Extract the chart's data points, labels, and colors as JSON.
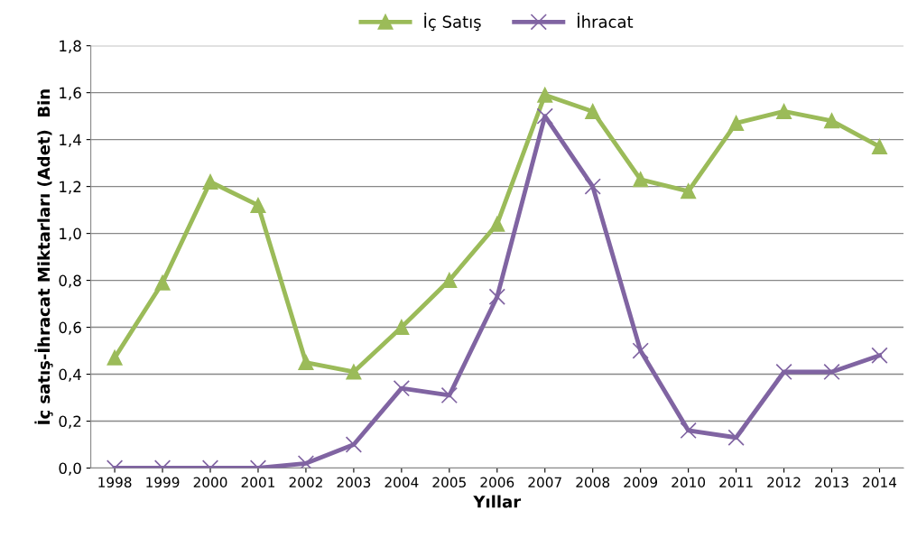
{
  "chart_data": {
    "type": "line",
    "xlabel": "Yıllar",
    "ylabel": "İç satış-İhracat Miktarları (Adet)  Bin",
    "categories": [
      "1998",
      "1999",
      "2000",
      "2001",
      "2002",
      "2003",
      "2004",
      "2005",
      "2006",
      "2007",
      "2008",
      "2009",
      "2010",
      "2011",
      "2012",
      "2013",
      "2014"
    ],
    "series": [
      {
        "name": "İç Satış",
        "color": "#9bbb59",
        "marker": "triangle",
        "values": [
          0.47,
          0.79,
          1.22,
          1.12,
          0.45,
          0.41,
          0.6,
          0.8,
          1.04,
          1.59,
          1.52,
          1.23,
          1.18,
          1.47,
          1.52,
          1.48,
          1.37
        ]
      },
      {
        "name": "İhracat",
        "color": "#8064a2",
        "marker": "cross",
        "values": [
          0.0,
          0.0,
          0.0,
          0.0,
          0.02,
          0.1,
          0.34,
          0.31,
          0.73,
          1.5,
          1.2,
          0.5,
          0.16,
          0.13,
          0.41,
          0.41,
          0.48
        ]
      }
    ],
    "ylim": [
      0,
      1.8
    ],
    "yticks": [
      {
        "value": 0,
        "label": "0,0"
      },
      {
        "value": 0.2,
        "label": "0,2"
      },
      {
        "value": 0.4,
        "label": "0,4"
      },
      {
        "value": 0.6,
        "label": "0,6"
      },
      {
        "value": 0.8,
        "label": "0,8"
      },
      {
        "value": 1.0,
        "label": "1,0"
      },
      {
        "value": 1.2,
        "label": "1,2"
      },
      {
        "value": 1.4,
        "label": "1,4"
      },
      {
        "value": 1.6,
        "label": "1,6"
      },
      {
        "value": 1.8,
        "label": "1,8"
      }
    ],
    "grid": "y",
    "legend": "top",
    "line_style": "solid"
  }
}
